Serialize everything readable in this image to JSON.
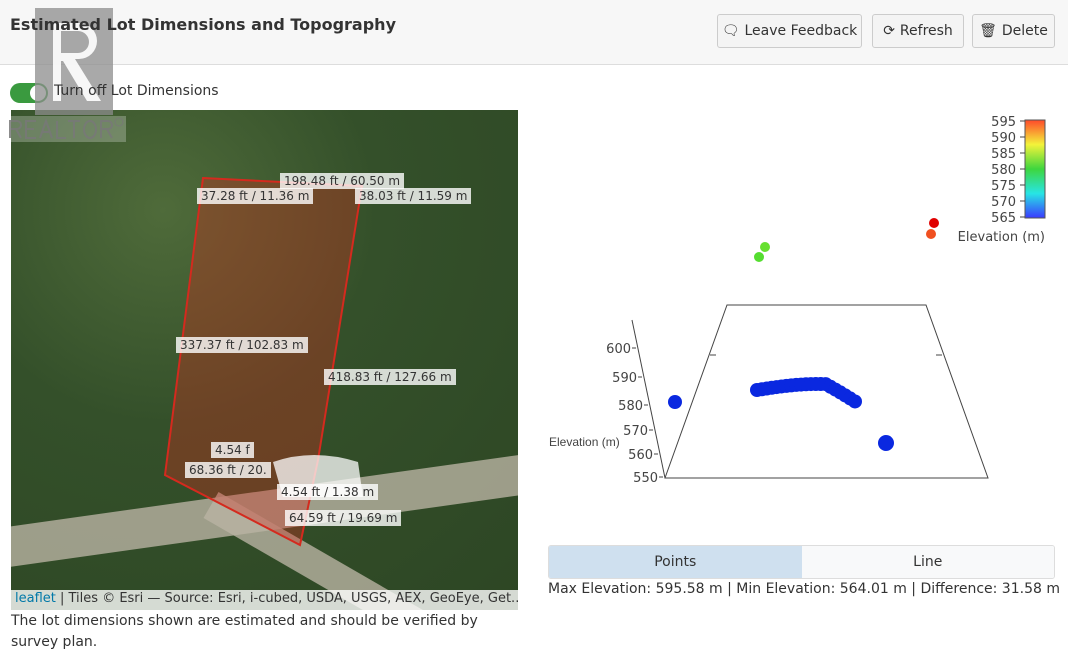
{
  "header": {
    "title": "Estimated Lot Dimensions and Topography",
    "buttons": [
      {
        "label": "Leave Feedback",
        "icon": "comment-icon"
      },
      {
        "label": "Refresh",
        "icon": "refresh-icon"
      },
      {
        "label": "Delete",
        "icon": "trash-icon"
      }
    ]
  },
  "watermark": {
    "letter": "R",
    "text": "REALTOR®"
  },
  "toggle": {
    "label": "Turn off Lot Dimensions",
    "on": true,
    "color": "#3a9a3f"
  },
  "map": {
    "labels": [
      "198.48 ft / 60.50 m",
      "37.28 ft / 11.36 m",
      "38.03 ft / 11.59 m",
      "337.37 ft / 102.83 m",
      "418.83 ft / 127.66 m",
      "4.54 f",
      "68.36 ft / 20.",
      "4.54 ft / 1.38 m",
      "64.59 ft / 19.69 m"
    ],
    "attribution_link": "leaflet",
    "attribution_text": " | Tiles © Esri — Source: Esri, i-cubed, USDA, USGS, AEX, GeoEye, Get...",
    "lot_color": "#d42a1e"
  },
  "note": "The lot dimensions shown are estimated and should be verified by survey plan.",
  "chart": {
    "z_axis_title": "Elevation (m)",
    "z_ticks": [
      "600",
      "590",
      "580",
      "570",
      "560",
      "550"
    ],
    "colorbar_title": "Elevation (m)",
    "colorbar_ticks": [
      "595",
      "590",
      "585",
      "580",
      "575",
      "570",
      "565"
    ],
    "colorscale": [
      "#3a3aff",
      "#27e5e5",
      "#3ed63e",
      "#f3f33a",
      "#ff4a2a"
    ]
  },
  "tabs": [
    {
      "label": "Points",
      "active": true
    },
    {
      "label": "Line",
      "active": false
    }
  ],
  "stats": "Max Elevation: 595.58 m | Min Elevation: 564.01 m | Difference: 31.58 m"
}
